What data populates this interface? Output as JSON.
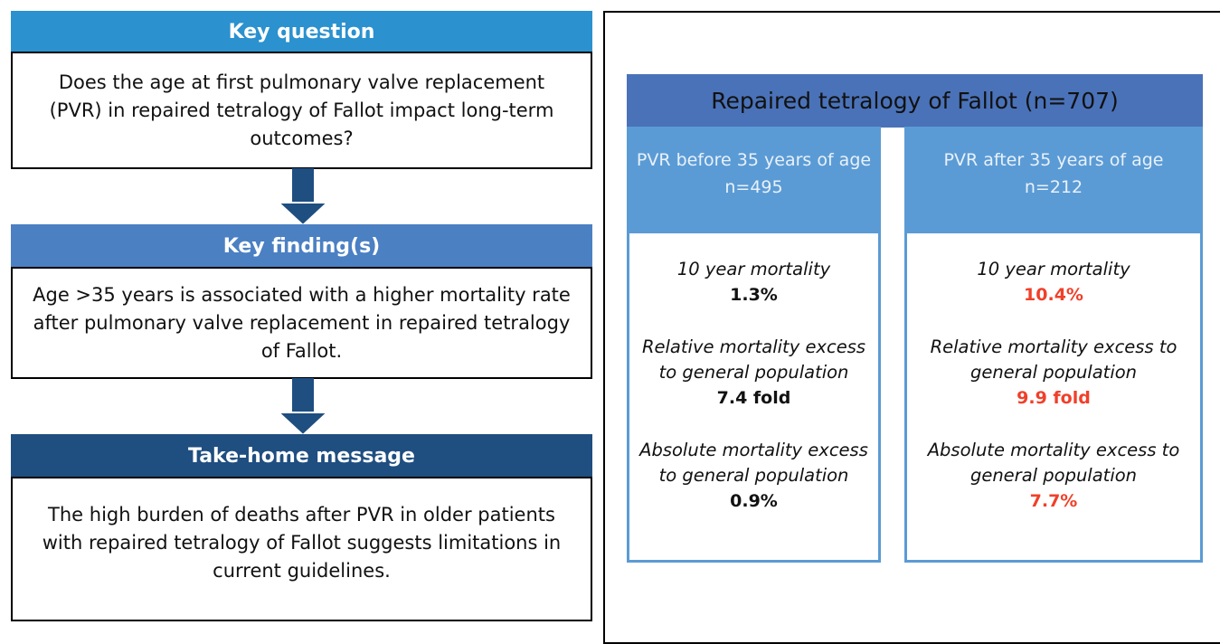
{
  "left": {
    "key_question": {
      "title": "Key question",
      "text": "Does the age at first pulmonary valve replacement (PVR) in repaired tetralogy of Fallot impact long-term outcomes?"
    },
    "key_finding": {
      "title": "Key finding(s)",
      "text": "Age >35 years is associated with a higher mortality rate after pulmonary valve replacement in repaired tetralogy of Fallot."
    },
    "take_home": {
      "title": "Take-home message",
      "text": "The high burden of deaths after PVR in older patients with repaired tetralogy of Fallot suggests limitations in current guidelines."
    }
  },
  "right": {
    "title": "Repaired tetralogy of Fallot (n=707)",
    "groups": [
      {
        "name": "PVR before 35 years of age",
        "n": "n=495",
        "items": [
          {
            "label": "10 year mortality",
            "value": "1.3%"
          },
          {
            "label": "Relative mortality excess to general population",
            "value": "7.4 fold"
          },
          {
            "label": "Absolute mortality excess to general population",
            "value": "0.9%"
          }
        ]
      },
      {
        "name": "PVR after 35 years of age",
        "n": "n=212",
        "items": [
          {
            "label": "10 year mortality",
            "value": "10.4%"
          },
          {
            "label": "Relative mortality excess to general population",
            "value": "9.9 fold"
          },
          {
            "label": "Absolute mortality excess to general population",
            "value": "7.7%"
          }
        ]
      }
    ]
  }
}
